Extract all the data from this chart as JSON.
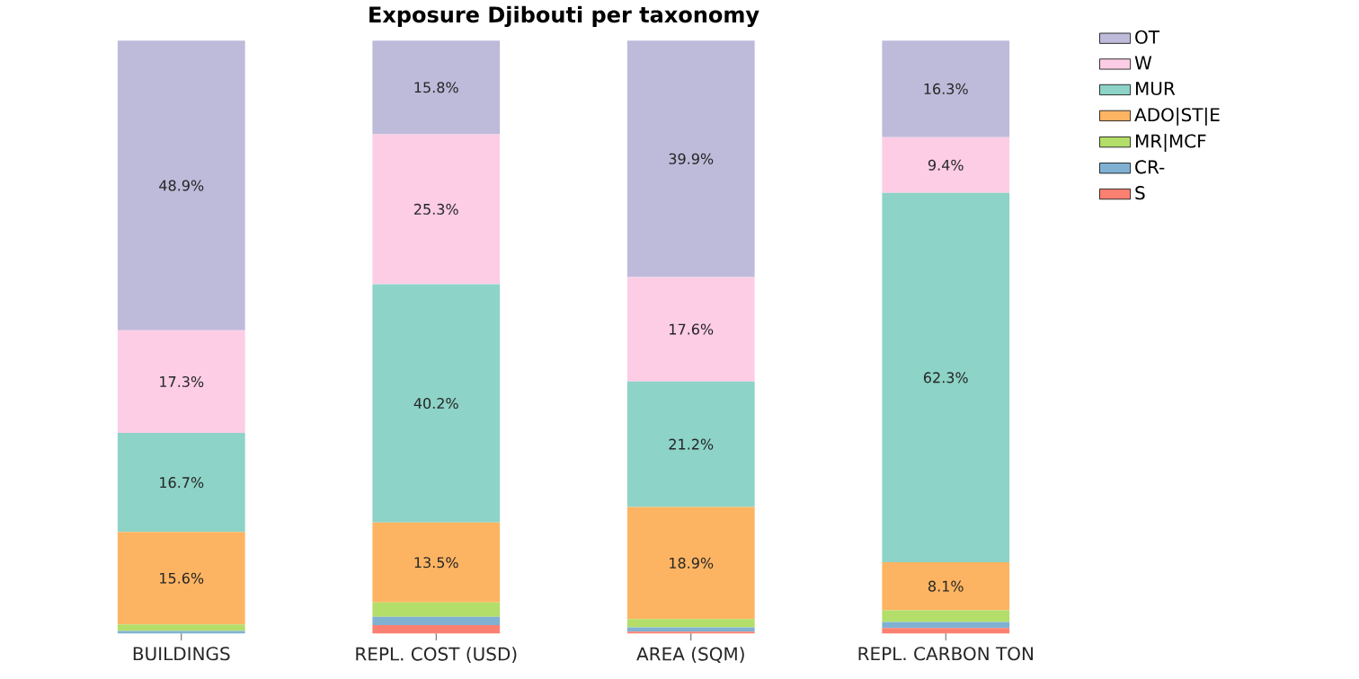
{
  "chart_data": {
    "type": "bar",
    "title": "Exposure Djibouti per taxonomy",
    "categories": [
      "BUILDINGS",
      "REPL. COST (USD)",
      "AREA (SQM)",
      "REPL. CARBON TON"
    ],
    "stacked": true,
    "tick_labels": "x",
    "legend": "right",
    "grid": false,
    "series": [
      {
        "name": "S",
        "color": "#fb8072",
        "values": [
          0,
          1.4,
          0.3,
          0.9
        ],
        "value_labels": [
          null,
          null,
          null,
          null
        ]
      },
      {
        "name": "CR-",
        "color": "#80b1d3",
        "values": [
          0.4,
          1.4,
          0.7,
          1.0
        ],
        "value_labels": [
          null,
          null,
          null,
          null
        ]
      },
      {
        "name": "MR|MCF",
        "color": "#b3de69",
        "values": [
          1.1,
          2.4,
          1.4,
          2.0
        ],
        "value_labels": [
          null,
          null,
          null,
          null
        ]
      },
      {
        "name": "ADO|ST|E",
        "color": "#fdb462",
        "values": [
          15.6,
          13.5,
          18.9,
          8.1
        ],
        "value_labels": [
          "15.6%",
          "13.5%",
          "18.9%",
          "8.1%"
        ]
      },
      {
        "name": "MUR",
        "color": "#8dd3c7",
        "values": [
          16.7,
          40.2,
          21.2,
          62.3
        ],
        "value_labels": [
          "16.7%",
          "40.2%",
          "21.2%",
          "62.3%"
        ]
      },
      {
        "name": "W",
        "color": "#fccde5",
        "values": [
          17.3,
          25.3,
          17.6,
          9.4
        ],
        "value_labels": [
          "17.3%",
          "25.3%",
          "17.6%",
          "9.4%"
        ]
      },
      {
        "name": "OT",
        "color": "#bebada",
        "values": [
          48.9,
          15.8,
          39.9,
          16.3
        ],
        "value_labels": [
          "48.9%",
          "15.8%",
          "39.9%",
          "16.3%"
        ]
      }
    ]
  }
}
